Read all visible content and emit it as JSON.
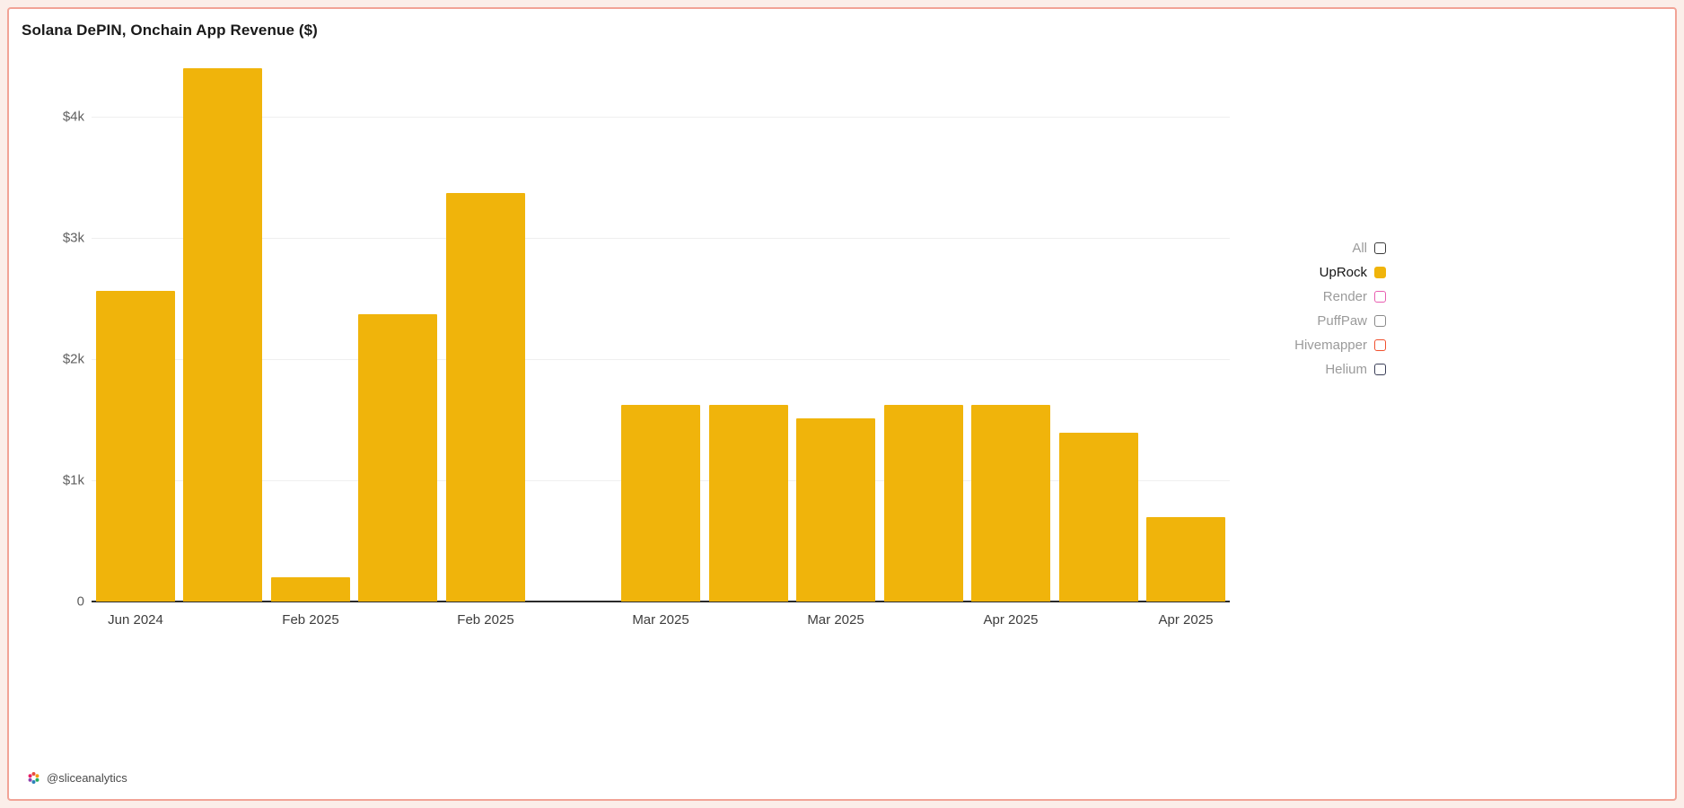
{
  "card": {
    "title": "Solana DePIN, Onchain App Revenue ($)",
    "attribution": "@sliceanalytics"
  },
  "legend": {
    "position": "right",
    "items": [
      {
        "label": "All",
        "active": false,
        "swatch_fill": "#ffffff",
        "swatch_border": "#3b3b3b"
      },
      {
        "label": "UpRock",
        "active": true,
        "swatch_fill": "#f0b40b",
        "swatch_border": "#f0b40b"
      },
      {
        "label": "Render",
        "active": false,
        "swatch_fill": "#ffffff",
        "swatch_border": "#e85eb0"
      },
      {
        "label": "PuffPaw",
        "active": false,
        "swatch_fill": "#ffffff",
        "swatch_border": "#8a8a8a"
      },
      {
        "label": "Hivemapper",
        "active": false,
        "swatch_fill": "#ffffff",
        "swatch_border": "#f0502e"
      },
      {
        "label": "Helium",
        "active": false,
        "swatch_fill": "#ffffff",
        "swatch_border": "#3b3f58"
      }
    ]
  },
  "chart_data": {
    "type": "bar",
    "title": "Solana DePIN, Onchain App Revenue ($)",
    "series": [
      {
        "name": "UpRock",
        "color": "#f0b40b",
        "values": [
          2560,
          4400,
          200,
          2370,
          3370,
          0,
          1620,
          1620,
          1510,
          1620,
          1620,
          1390,
          700
        ]
      }
    ],
    "categories": [
      "Jun 2024",
      "",
      "Feb 2025",
      "",
      "Feb 2025",
      "",
      "Mar 2025",
      "",
      "Mar 2025",
      "",
      "Apr 2025",
      "",
      "Apr 2025"
    ],
    "xlabel": "",
    "ylabel": "",
    "ylim": [
      0,
      4890
    ],
    "yticks": [
      {
        "value": 0,
        "label": "0"
      },
      {
        "value": 1000,
        "label": "$1k"
      },
      {
        "value": 2000,
        "label": "$2k"
      },
      {
        "value": 3000,
        "label": "$3k"
      },
      {
        "value": 4000,
        "label": "$4k"
      }
    ],
    "grid": true,
    "legend_position": "right"
  }
}
